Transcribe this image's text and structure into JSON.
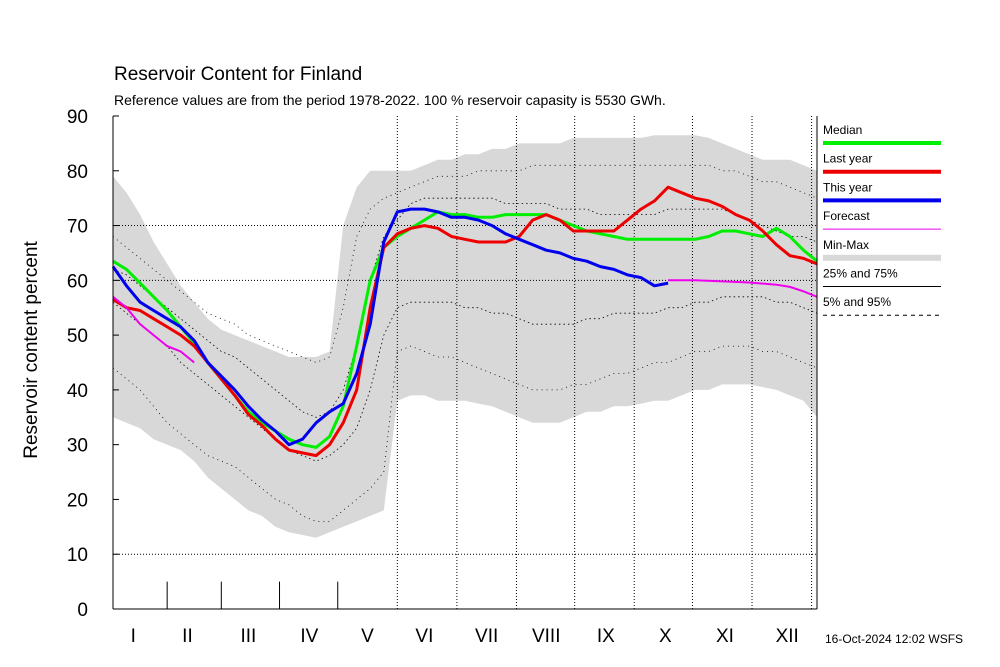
{
  "page": {
    "title": "Reservoir Content for Finland",
    "subtitle": "Reference values are from the period 1978-2022. 100 % reservoir capasity is 5530 GWh.",
    "ylabel": "Reservoir content percent",
    "footer": "16-Oct-2024 12:02 WSFS"
  },
  "chart_data": {
    "type": "line",
    "title": "Reservoir Content for Finland",
    "subtitle": "Reference values are from the period 1978-2022. 100 % reservoir capasity is 5530 GWh.",
    "xlabel": "",
    "ylabel": "Reservoir content percent",
    "xlim": [
      1,
      53
    ],
    "ylim": [
      0,
      90
    ],
    "yticks": [
      0,
      10,
      20,
      30,
      40,
      50,
      60,
      70,
      80,
      90
    ],
    "ygrid_dotted": [
      10,
      60,
      70
    ],
    "month_labels": [
      {
        "label": "I",
        "x": 2.5
      },
      {
        "label": "II",
        "x": 6.5
      },
      {
        "label": "III",
        "x": 11
      },
      {
        "label": "IV",
        "x": 15.5
      },
      {
        "label": "V",
        "x": 19.8
      },
      {
        "label": "VI",
        "x": 24
      },
      {
        "label": "VII",
        "x": 28.6
      },
      {
        "label": "VIII",
        "x": 33
      },
      {
        "label": "IX",
        "x": 37.4
      },
      {
        "label": "X",
        "x": 41.8
      },
      {
        "label": "XI",
        "x": 46.2
      },
      {
        "label": "XII",
        "x": 50.8
      }
    ],
    "month_boundaries": [
      5,
      9,
      13.3,
      17.6,
      22,
      26.4,
      30.8,
      35.1,
      39.5,
      43.8,
      48.2,
      52.6
    ],
    "x": [
      1,
      2,
      3,
      4,
      5,
      6,
      7,
      8,
      9,
      10,
      11,
      12,
      13,
      14,
      15,
      16,
      17,
      18,
      19,
      20,
      21,
      22,
      23,
      24,
      25,
      26,
      27,
      28,
      29,
      30,
      31,
      32,
      33,
      34,
      35,
      36,
      37,
      38,
      39,
      40,
      41,
      42,
      43,
      44,
      45,
      46,
      47,
      48,
      49,
      50,
      51,
      52,
      53
    ],
    "band_minmax": {
      "low": [
        35,
        34,
        33,
        31,
        30,
        29,
        27,
        24,
        22,
        20,
        18,
        17,
        15,
        14,
        13.5,
        13,
        14,
        15,
        16,
        17,
        18,
        38,
        39,
        39,
        38,
        38,
        38,
        37.5,
        37,
        36,
        35,
        34,
        34,
        34,
        35,
        36,
        36,
        37,
        37,
        37.5,
        38,
        38,
        39,
        40,
        40,
        41,
        41,
        41,
        40.5,
        40,
        39,
        38,
        35
      ],
      "high": [
        79,
        76,
        72,
        67,
        63,
        59,
        56,
        53,
        51,
        50,
        49,
        48,
        47,
        46,
        46,
        46,
        47,
        70,
        77,
        80,
        80,
        80,
        80,
        81,
        82,
        82,
        83,
        83,
        84,
        84,
        85,
        85,
        85,
        85,
        86,
        86,
        86,
        86,
        86,
        86,
        86.5,
        86.5,
        86.5,
        86.5,
        86,
        85,
        84,
        83,
        82,
        82,
        82,
        81,
        80
      ]
    },
    "band_25_75": {
      "low": [
        56,
        54,
        52,
        50,
        48,
        45,
        43,
        41,
        39,
        37,
        35,
        33,
        31,
        29,
        28,
        27,
        28,
        30,
        33,
        40,
        50,
        55,
        56,
        56,
        56,
        56,
        55,
        55,
        54,
        54,
        53,
        52,
        52,
        52,
        52,
        53,
        53,
        54,
        54,
        54,
        54,
        55,
        55,
        56,
        56,
        57,
        57,
        57,
        57,
        56,
        56,
        55,
        54
      ],
      "high": [
        62,
        61,
        59,
        57,
        55,
        53,
        51,
        49,
        47,
        46,
        44,
        42,
        40,
        38,
        36,
        35,
        36,
        40,
        48,
        60,
        68,
        71,
        74,
        75,
        75,
        75,
        75,
        75,
        75,
        74,
        74,
        74,
        74,
        73,
        73,
        73,
        72,
        72,
        72,
        72,
        72,
        73,
        73,
        73,
        73,
        73,
        72,
        71,
        70,
        69,
        68,
        68,
        67
      ]
    },
    "band_5_95": {
      "low": [
        44,
        42,
        40,
        37,
        34,
        32,
        30,
        28,
        27,
        26,
        24,
        22,
        20,
        19,
        17,
        16,
        16,
        18,
        20,
        22,
        25,
        47,
        48,
        47,
        46,
        46,
        45,
        44,
        43,
        42,
        41,
        40,
        40,
        40,
        41,
        41,
        42,
        43,
        43,
        44,
        45,
        45,
        46,
        47,
        47,
        48,
        48,
        48,
        47,
        47,
        46,
        45,
        44
      ],
      "high": [
        68,
        66,
        64,
        62,
        60,
        58,
        56,
        54,
        53,
        52,
        50,
        49,
        48,
        47,
        46,
        45,
        46,
        55,
        68,
        73,
        75,
        76,
        77,
        78,
        79,
        79,
        79,
        80,
        80,
        80,
        80,
        81,
        81,
        81,
        81,
        81,
        81,
        81,
        81,
        81,
        81,
        81,
        81,
        81,
        81,
        80,
        80,
        79,
        78,
        78,
        77,
        76,
        75
      ]
    },
    "series": [
      {
        "name": "Median",
        "color": "#00ee00",
        "x": [
          1,
          2,
          3,
          4,
          5,
          6,
          7,
          8,
          9,
          10,
          11,
          12,
          13,
          14,
          15,
          16,
          17,
          18,
          19,
          20,
          21,
          22,
          23,
          24,
          25,
          26,
          27,
          28,
          29,
          30,
          31,
          32,
          33,
          34,
          35,
          36,
          37,
          38,
          39,
          40,
          41,
          42,
          43,
          44,
          45,
          46,
          47,
          48,
          49,
          50,
          51,
          52,
          53
        ],
        "y": [
          63.5,
          62,
          59.5,
          57,
          54.5,
          51.5,
          48.5,
          45,
          42,
          39,
          36,
          34,
          32.5,
          31,
          30,
          29.5,
          31.5,
          37,
          48,
          60,
          66,
          68,
          69.5,
          71,
          72.5,
          72,
          72,
          71.5,
          71.5,
          72,
          72,
          72,
          72,
          71,
          70,
          69,
          68.5,
          68,
          67.5,
          67.5,
          67.5,
          67.5,
          67.5,
          67.5,
          68,
          69,
          69,
          68.5,
          68,
          69.5,
          68,
          65.5,
          63.5
        ]
      },
      {
        "name": "Last year",
        "color": "#ee0000",
        "x": [
          1,
          2,
          3,
          4,
          5,
          6,
          7,
          8,
          9,
          10,
          11,
          12,
          13,
          14,
          15,
          16,
          17,
          18,
          19,
          20,
          21,
          22,
          23,
          24,
          25,
          26,
          27,
          28,
          29,
          30,
          31,
          32,
          33,
          34,
          35,
          36,
          37,
          38,
          39,
          40,
          41,
          42,
          43,
          44,
          45,
          46,
          47,
          48,
          49,
          50,
          51,
          52,
          53
        ],
        "y": [
          56.5,
          55,
          54.5,
          53,
          51.5,
          50,
          48,
          45,
          42,
          39,
          35.5,
          33.5,
          31,
          29,
          28.5,
          28,
          30,
          34,
          40,
          55,
          66,
          68.5,
          69.5,
          70,
          69.5,
          68,
          67.5,
          67,
          67,
          67,
          68,
          71,
          72,
          71,
          69,
          69,
          69,
          69,
          71,
          73,
          74.5,
          77,
          76,
          75,
          74.5,
          73.5,
          72,
          71,
          69,
          66.5,
          64.5,
          64,
          63
        ]
      },
      {
        "name": "This year",
        "color": "#0000ee",
        "x": [
          1,
          2,
          3,
          4,
          5,
          6,
          7,
          8,
          9,
          10,
          11,
          12,
          13,
          14,
          15,
          16,
          17,
          18,
          19,
          20,
          21,
          22,
          23,
          24,
          25,
          26,
          27,
          28,
          29,
          30,
          31,
          32,
          33,
          34,
          35,
          36,
          37,
          38,
          39,
          40,
          41,
          42
        ],
        "y": [
          62.5,
          59,
          56,
          54.5,
          53,
          51.5,
          49,
          45,
          42.5,
          40,
          37,
          34.5,
          32.5,
          30,
          31,
          34,
          36,
          37.5,
          43,
          52,
          67,
          72.5,
          73,
          73,
          72.5,
          71.5,
          71.5,
          71,
          70,
          68.5,
          67.5,
          66.5,
          65.5,
          65,
          64,
          63.5,
          62.5,
          62,
          61,
          60.5,
          59,
          59.5
        ]
      },
      {
        "name": "Forecast",
        "color": "#ee00ee",
        "segments": [
          {
            "x": [
              1,
              2,
              3,
              4,
              5,
              6,
              7
            ],
            "y": [
              57,
              55,
              52,
              50,
              48,
              47,
              45
            ]
          },
          {
            "x": [
              42,
              44,
              46,
              48,
              50,
              51,
              52,
              53
            ],
            "y": [
              60,
              60,
              59.8,
              59.6,
              59.2,
              58.8,
              58,
              57
            ]
          }
        ]
      }
    ],
    "legend": {
      "placement": "right",
      "entries": [
        {
          "label": "Median",
          "color": "#00ee00",
          "style": "thick"
        },
        {
          "label": "Last year",
          "color": "#ee0000",
          "style": "thick"
        },
        {
          "label": "This year",
          "color": "#0000ee",
          "style": "thick"
        },
        {
          "label": "Forecast",
          "color": "#ee00ee",
          "style": "thin"
        },
        {
          "label": "Min-Max",
          "color": "#d8d8d8",
          "style": "band"
        },
        {
          "label": "25% and 75%",
          "color": "#000000",
          "style": "thin"
        },
        {
          "label": "5% and 95%",
          "color": "#000000",
          "style": "dashed"
        }
      ]
    }
  }
}
